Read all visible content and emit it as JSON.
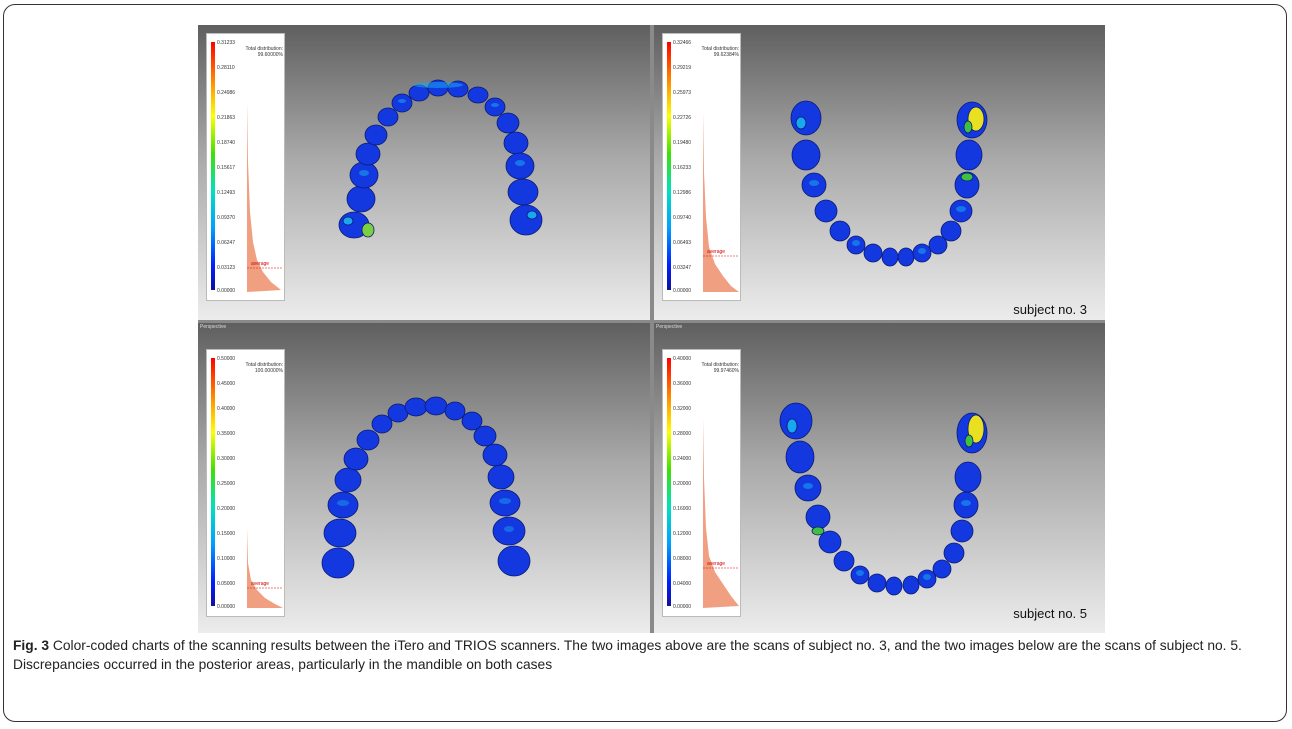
{
  "figure": {
    "panels": [
      {
        "view_label": "",
        "total_distribution_label": "Total distribution:",
        "total_distribution_value": "99.60000%",
        "average_label": "average",
        "subject_label": "",
        "scale_ticks": [
          "0.31233",
          "0.28110",
          "0.24986",
          "0.21863",
          "0.18740",
          "0.15617",
          "0.12493",
          "0.09370",
          "0.06247",
          "0.03123",
          "0.00000"
        ]
      },
      {
        "view_label": "",
        "total_distribution_label": "Total distribution:",
        "total_distribution_value": "99.62384%",
        "average_label": "average",
        "subject_label": "subject no. 3",
        "scale_ticks": [
          "0.32466",
          "0.29219",
          "0.25973",
          "0.22726",
          "0.19480",
          "0.16233",
          "0.12986",
          "0.09740",
          "0.06493",
          "0.03247",
          "0.00000"
        ]
      },
      {
        "view_label": "Perspective",
        "total_distribution_label": "Total distribution:",
        "total_distribution_value": "100.00000%",
        "average_label": "average",
        "subject_label": "",
        "scale_ticks": [
          "0.50000",
          "0.45000",
          "0.40000",
          "0.35000",
          "0.30000",
          "0.25000",
          "0.20000",
          "0.15000",
          "0.10000",
          "0.05000",
          "0.00000"
        ]
      },
      {
        "view_label": "Perspective",
        "total_distribution_label": "Total distribution:",
        "total_distribution_value": "99.97460%",
        "average_label": "average",
        "subject_label": "subject no. 5",
        "scale_ticks": [
          "0.40000",
          "0.36000",
          "0.32000",
          "0.28000",
          "0.24000",
          "0.20000",
          "0.16000",
          "0.12000",
          "0.08000",
          "0.04000",
          "0.00000"
        ]
      }
    ]
  },
  "caption": {
    "label": "Fig. 3",
    "text": " Color-coded charts of the scanning results between the iTero and TRIOS scanners. The two images above are the scans of subject no. 3, and the two images below are the scans of subject no. 5. Discrepancies occurred in the posterior areas, particularly in the mandible on both cases"
  },
  "colors": {
    "tooth_base": "#1438e0",
    "tooth_highlight": "#19a8f0",
    "discrepancy_hot": "#e8e020",
    "histogram": "#f0a080"
  }
}
